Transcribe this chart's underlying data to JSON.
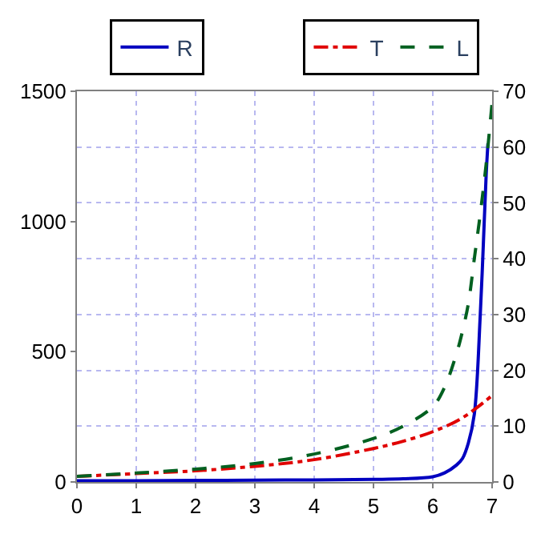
{
  "chart_data": {
    "type": "line",
    "legend": "top",
    "grid": true,
    "xlim": [
      0,
      7
    ],
    "xticks": [
      0,
      1,
      2,
      3,
      4,
      5,
      6,
      7
    ],
    "ylim": [
      0,
      1500
    ],
    "yticks": [
      0,
      500,
      1000,
      1500
    ],
    "y2lim": [
      0,
      70
    ],
    "y2ticks": [
      0,
      10,
      20,
      30,
      40,
      50,
      60,
      70
    ],
    "series": [
      {
        "name": "R",
        "color": "#0000c0",
        "line_style": "solid",
        "axis": "y",
        "x": [
          0,
          1,
          2,
          3,
          4,
          5,
          5.5,
          6,
          6.2,
          6.4,
          6.5,
          6.6,
          6.7,
          6.8,
          6.85,
          6.9,
          6.93
        ],
        "values": [
          5,
          5,
          6,
          7,
          8,
          10,
          12,
          20,
          35,
          65,
          90,
          150,
          260,
          640,
          900,
          1180,
          1300
        ]
      },
      {
        "name": "T",
        "color": "#e00000",
        "line_style": "dashdot",
        "axis": "y2",
        "x": [
          0,
          1,
          2,
          3,
          4,
          5,
          5.5,
          6,
          6.5,
          7
        ],
        "values": [
          1,
          1.5,
          2,
          2.8,
          4,
          6,
          7.3,
          9,
          11.5,
          15.5
        ]
      },
      {
        "name": "L",
        "color": "#006020",
        "line_style": "dashed",
        "axis": "y2",
        "x": [
          0,
          1,
          2,
          3,
          4,
          5,
          5.5,
          6,
          6.2,
          6.4,
          6.5,
          6.6,
          6.7,
          6.8,
          6.9,
          7
        ],
        "values": [
          1,
          1.6,
          2.3,
          3.3,
          5,
          7.8,
          10,
          13.5,
          17,
          23,
          27,
          32,
          40,
          48,
          57,
          68
        ]
      }
    ]
  }
}
